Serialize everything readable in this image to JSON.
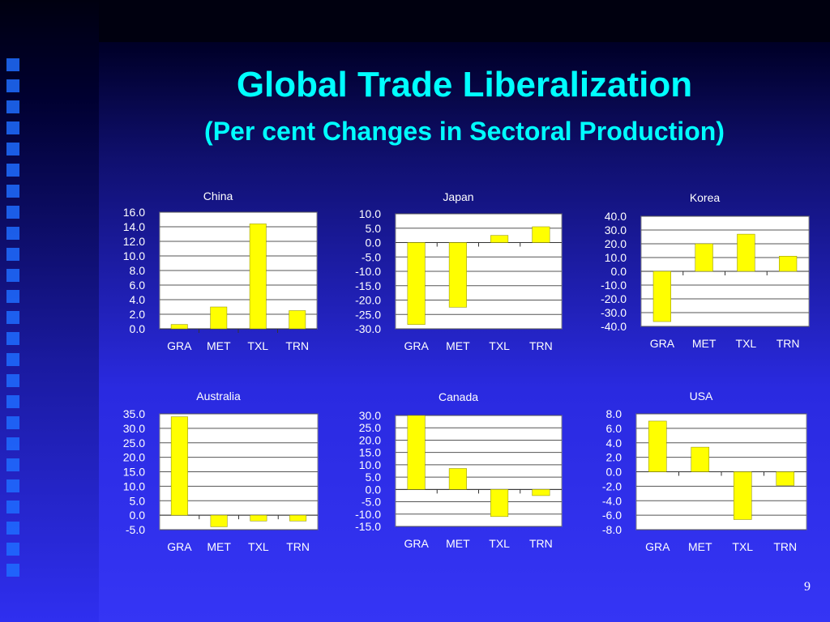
{
  "slide": {
    "title": "Global Trade Liberalization",
    "subtitle": "(Per cent Changes in Sectoral Production)",
    "page_number": "9"
  },
  "colors": {
    "bar": "#ffff00",
    "plot_background": "#ffffff",
    "text": "#ffffff",
    "title": "#00ffff"
  },
  "chart_data": [
    {
      "type": "bar",
      "title": "China",
      "categories": [
        "GRA",
        "MET",
        "TXL",
        "TRN"
      ],
      "values": [
        0.6,
        3.0,
        14.4,
        2.5
      ],
      "ylim": [
        0,
        16
      ],
      "yticks": [
        "16.0",
        "14.0",
        "12.0",
        "10.0",
        "8.0",
        "6.0",
        "4.0",
        "2.0",
        "0.0"
      ],
      "grid": true
    },
    {
      "type": "bar",
      "title": "Japan",
      "categories": [
        "GRA",
        "MET",
        "TXL",
        "TRN"
      ],
      "values": [
        -28.5,
        -22.5,
        2.5,
        5.5
      ],
      "ylim": [
        -30,
        10
      ],
      "yticks": [
        "10.0",
        "5.0",
        "0.0",
        "-5.0",
        "-10.0",
        "-15.0",
        "-20.0",
        "-25.0",
        "-30.0"
      ],
      "grid": true
    },
    {
      "type": "bar",
      "title": "Korea",
      "categories": [
        "GRA",
        "MET",
        "TXL",
        "TRN"
      ],
      "values": [
        -36.5,
        20.0,
        27.0,
        11.0
      ],
      "ylim": [
        -40,
        40
      ],
      "yticks": [
        "40.0",
        "30.0",
        "20.0",
        "10.0",
        "0.0",
        "-10.0",
        "-20.0",
        "-30.0",
        "-40.0"
      ],
      "grid": true
    },
    {
      "type": "bar",
      "title": "Australia",
      "categories": [
        "GRA",
        "MET",
        "TXL",
        "TRN"
      ],
      "values": [
        34.0,
        -4.0,
        -2.0,
        -2.0
      ],
      "ylim": [
        -5,
        35
      ],
      "yticks": [
        "35.0",
        "30.0",
        "25.0",
        "20.0",
        "15.0",
        "10.0",
        "5.0",
        "0.0",
        "-5.0"
      ],
      "grid": true
    },
    {
      "type": "bar",
      "title": "Canada",
      "categories": [
        "GRA",
        "MET",
        "TXL",
        "TRN"
      ],
      "values": [
        30.0,
        8.5,
        -11.0,
        -2.5
      ],
      "ylim": [
        -15,
        30
      ],
      "yticks": [
        "30.0",
        "25.0",
        "20.0",
        "15.0",
        "10.0",
        "5.0",
        "0.0",
        "-5.0",
        "-10.0",
        "-15.0"
      ],
      "grid": true
    },
    {
      "type": "bar",
      "title": "USA",
      "categories": [
        "GRA",
        "MET",
        "TXL",
        "TRN"
      ],
      "values": [
        7.0,
        3.4,
        -6.6,
        -1.9
      ],
      "ylim": [
        -8,
        8
      ],
      "yticks": [
        "8.0",
        "6.0",
        "4.0",
        "2.0",
        "0.0",
        "-2.0",
        "-4.0",
        "-6.0",
        "-8.0"
      ],
      "grid": true
    }
  ]
}
